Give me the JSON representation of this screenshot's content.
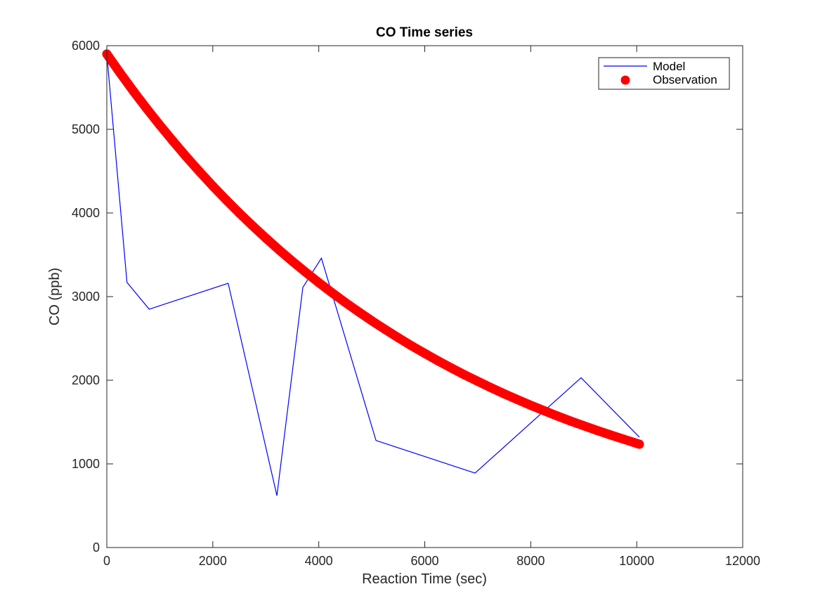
{
  "chart_data": {
    "type": "line",
    "title": "CO Time series",
    "xlabel": "Reaction Time (sec)",
    "ylabel": "CO (ppb)",
    "xlim": [
      0,
      12000
    ],
    "ylim": [
      0,
      6000
    ],
    "xticks": [
      0,
      2000,
      4000,
      6000,
      8000,
      10000,
      12000
    ],
    "yticks": [
      0,
      1000,
      2000,
      3000,
      4000,
      5000,
      6000
    ],
    "xtick_labels": [
      "0",
      "2000",
      "4000",
      "6000",
      "8000",
      "10000",
      "12000"
    ],
    "ytick_labels": [
      "0",
      "1000",
      "2000",
      "3000",
      "4000",
      "5000",
      "6000"
    ],
    "grid": false,
    "legend_position": "top-right",
    "series": [
      {
        "name": "Model",
        "style": "line",
        "color": "#0000ff",
        "x": [
          0,
          380,
          800,
          2290,
          3210,
          3700,
          4050,
          5080,
          6950,
          8950,
          10050
        ],
        "y": [
          5900,
          3170,
          2850,
          3160,
          620,
          3110,
          3460,
          1280,
          890,
          2030,
          1320
        ]
      },
      {
        "name": "Observation",
        "style": "markers",
        "color": "#ff0000",
        "x": [
          0,
          250,
          500,
          750,
          1000,
          1250,
          1500,
          1750,
          2000,
          2250,
          2500,
          2750,
          3000,
          3250,
          3500,
          3750,
          4000,
          4250,
          4500,
          4750,
          5000,
          5250,
          5500,
          5750,
          6000,
          6250,
          6500,
          6750,
          7000,
          7250,
          7500,
          7750,
          8000,
          8250,
          8500,
          8750,
          9000,
          9250,
          9500,
          9750,
          10050
        ],
        "y": [
          5900,
          5675,
          5458,
          5250,
          5050,
          4858,
          4672,
          4494,
          4323,
          4158,
          3999,
          3847,
          3700,
          3559,
          3423,
          3293,
          3167,
          3047,
          2930,
          2819,
          2711,
          2608,
          2508,
          2413,
          2321,
          2232,
          2147,
          2065,
          1987,
          1911,
          1838,
          1768,
          1701,
          1636,
          1573,
          1513,
          1456,
          1400,
          1347,
          1296,
          1235
        ]
      }
    ]
  }
}
